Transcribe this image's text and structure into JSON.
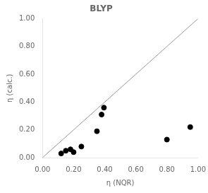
{
  "chart_data": {
    "type": "scatter",
    "title": "BLYP",
    "xlabel": "η (NQR)",
    "ylabel": "η (calc.)",
    "x": [
      0.12,
      0.15,
      0.18,
      0.2,
      0.25,
      0.35,
      0.38,
      0.395,
      0.8,
      0.95
    ],
    "values": [
      0.03,
      0.05,
      0.06,
      0.04,
      0.08,
      0.19,
      0.31,
      0.36,
      0.13,
      0.22
    ],
    "color": "#000000",
    "reference_line": {
      "x": [
        0.0,
        1.0
      ],
      "y": [
        0.0,
        1.0
      ],
      "color": "#999999"
    },
    "xlim": [
      0.0,
      1.0
    ],
    "ylim": [
      0.0,
      1.0
    ],
    "xticks": [
      {
        "value": 0.0,
        "label": "0.00"
      },
      {
        "value": 0.2,
        "label": "0.20"
      },
      {
        "value": 0.4,
        "label": "0.40"
      },
      {
        "value": 0.6,
        "label": "0.60"
      },
      {
        "value": 0.8,
        "label": "0.80"
      },
      {
        "value": 1.0,
        "label": "1.00"
      }
    ],
    "yticks": [
      {
        "value": 0.0,
        "label": "0.00"
      },
      {
        "value": 0.2,
        "label": "0.20"
      },
      {
        "value": 0.4,
        "label": "0.40"
      },
      {
        "value": 0.6,
        "label": "0.60"
      },
      {
        "value": 0.8,
        "label": "0.80"
      },
      {
        "value": 1.0,
        "label": "1.00"
      }
    ],
    "grid": false
  }
}
